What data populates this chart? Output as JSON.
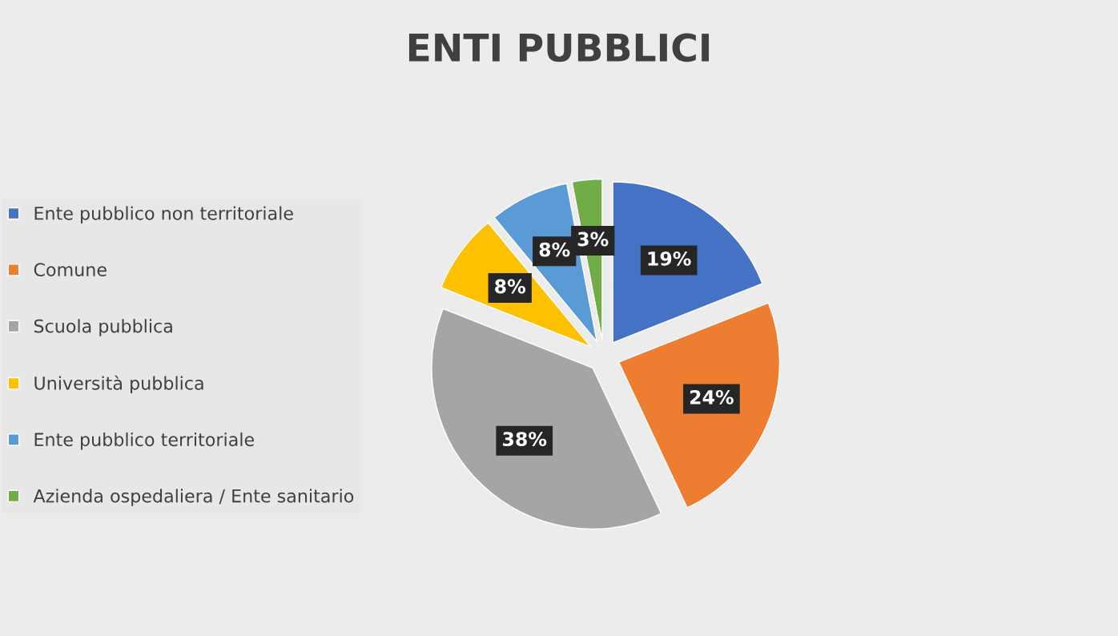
{
  "chart_data": {
    "type": "pie",
    "title": "ENTI PUBBLICI",
    "categories": [
      "Ente pubblico non territoriale",
      "Comune",
      "Scuola pubblica",
      "Università pubblica",
      "Ente pubblico territoriale",
      "Azienda ospedaliera / Ente sanitario"
    ],
    "values": [
      19,
      24,
      38,
      8,
      8,
      3
    ],
    "colors": [
      "#4472c4",
      "#ed7d31",
      "#a5a5a5",
      "#ffc000",
      "#5b9bd5",
      "#70ad47"
    ],
    "value_labels": [
      "19%",
      "24%",
      "38%",
      "8%",
      "8%",
      "3%"
    ],
    "legend": "left"
  }
}
